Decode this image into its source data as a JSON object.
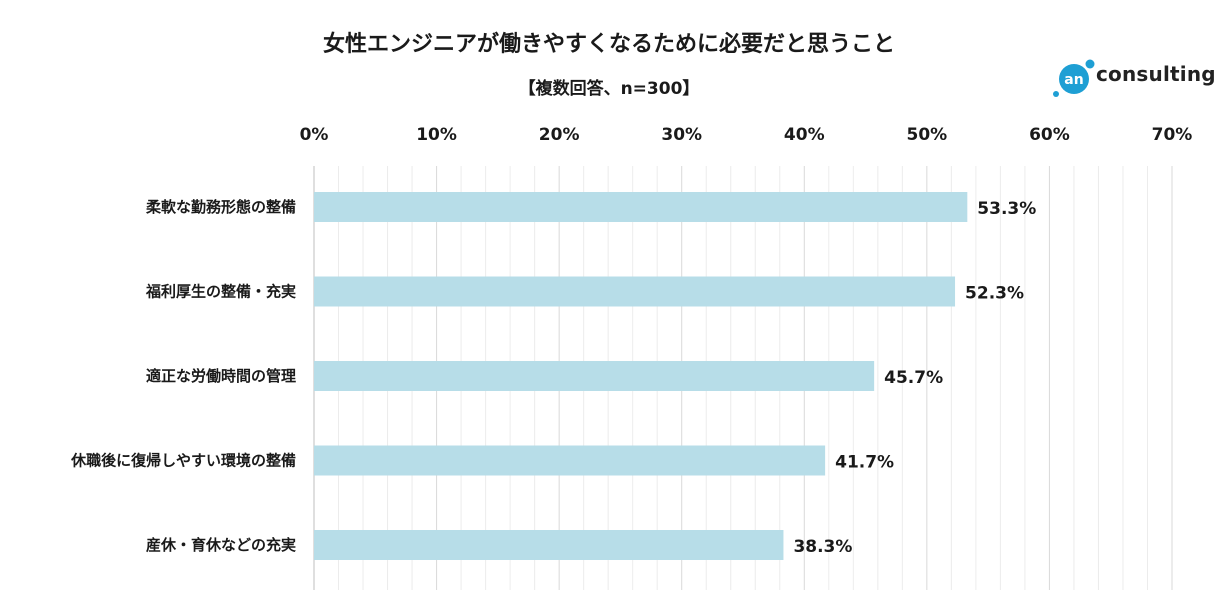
{
  "brand": {
    "logo_mark": "an",
    "logo_text": "consulting",
    "accent": "#1e9fd4",
    "bar_color": "#b7dde8",
    "grid_color": "#d9d9d9"
  },
  "chart_data": {
    "type": "bar",
    "orientation": "horizontal",
    "title": "女性エンジニアが働きやすくなるために必要だと思うこと",
    "subtitle": "【複数回答、n=300】",
    "categories": [
      "柔軟な勤務形態の整備",
      "福利厚生の整備・充実",
      "適正な労働時間の管理",
      "休職後に復帰しやすい環境の整備",
      "産休・育休などの充実"
    ],
    "values": [
      53.3,
      52.3,
      45.7,
      41.7,
      38.3
    ],
    "data_labels": [
      "53.3%",
      "52.3%",
      "45.7%",
      "41.7%",
      "38.3%"
    ],
    "xlim": [
      0,
      70
    ],
    "ticks": [
      0,
      10,
      20,
      30,
      40,
      50,
      60,
      70
    ],
    "tick_labels": [
      "0%",
      "10%",
      "20%",
      "30%",
      "40%",
      "50%",
      "60%",
      "70%"
    ],
    "axis_position": "top",
    "grid": true,
    "legend": "none"
  }
}
